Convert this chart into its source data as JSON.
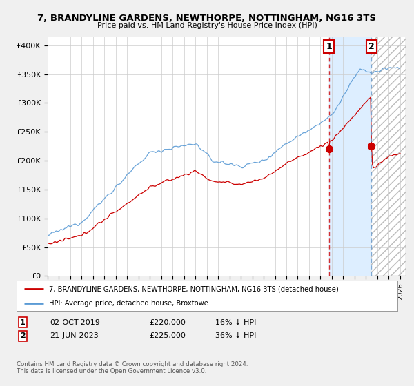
{
  "title": "7, BRANDYLINE GARDENS, NEWTHORPE, NOTTINGHAM, NG16 3TS",
  "subtitle": "Price paid vs. HM Land Registry's House Price Index (HPI)",
  "ylabel_ticks": [
    "£0",
    "£50K",
    "£100K",
    "£150K",
    "£200K",
    "£250K",
    "£300K",
    "£350K",
    "£400K"
  ],
  "ytick_values": [
    0,
    50000,
    100000,
    150000,
    200000,
    250000,
    300000,
    350000,
    400000
  ],
  "ylim": [
    0,
    415000
  ],
  "xlim_start": 1995.0,
  "xlim_end": 2026.5,
  "hpi_color": "#5b9bd5",
  "price_color": "#cc0000",
  "sale1_date": "02-OCT-2019",
  "sale1_price": 220000,
  "sale1_pct": "16% ↓ HPI",
  "sale1_x": 2019.75,
  "sale2_date": "21-JUN-2023",
  "sale2_price": 225000,
  "sale2_pct": "36% ↓ HPI",
  "sale2_x": 2023.47,
  "legend_label1": "7, BRANDYLINE GARDENS, NEWTHORPE, NOTTINGHAM, NG16 3TS (detached house)",
  "legend_label2": "HPI: Average price, detached house, Broxtowe",
  "footnote": "Contains HM Land Registry data © Crown copyright and database right 2024.\nThis data is licensed under the Open Government Licence v3.0.",
  "fig_bg_color": "#f0f0f0",
  "plot_bg_color": "#ffffff",
  "grid_color": "#cccccc",
  "shade_color": "#ddeeff",
  "hatch_color": "#aaaaaa"
}
